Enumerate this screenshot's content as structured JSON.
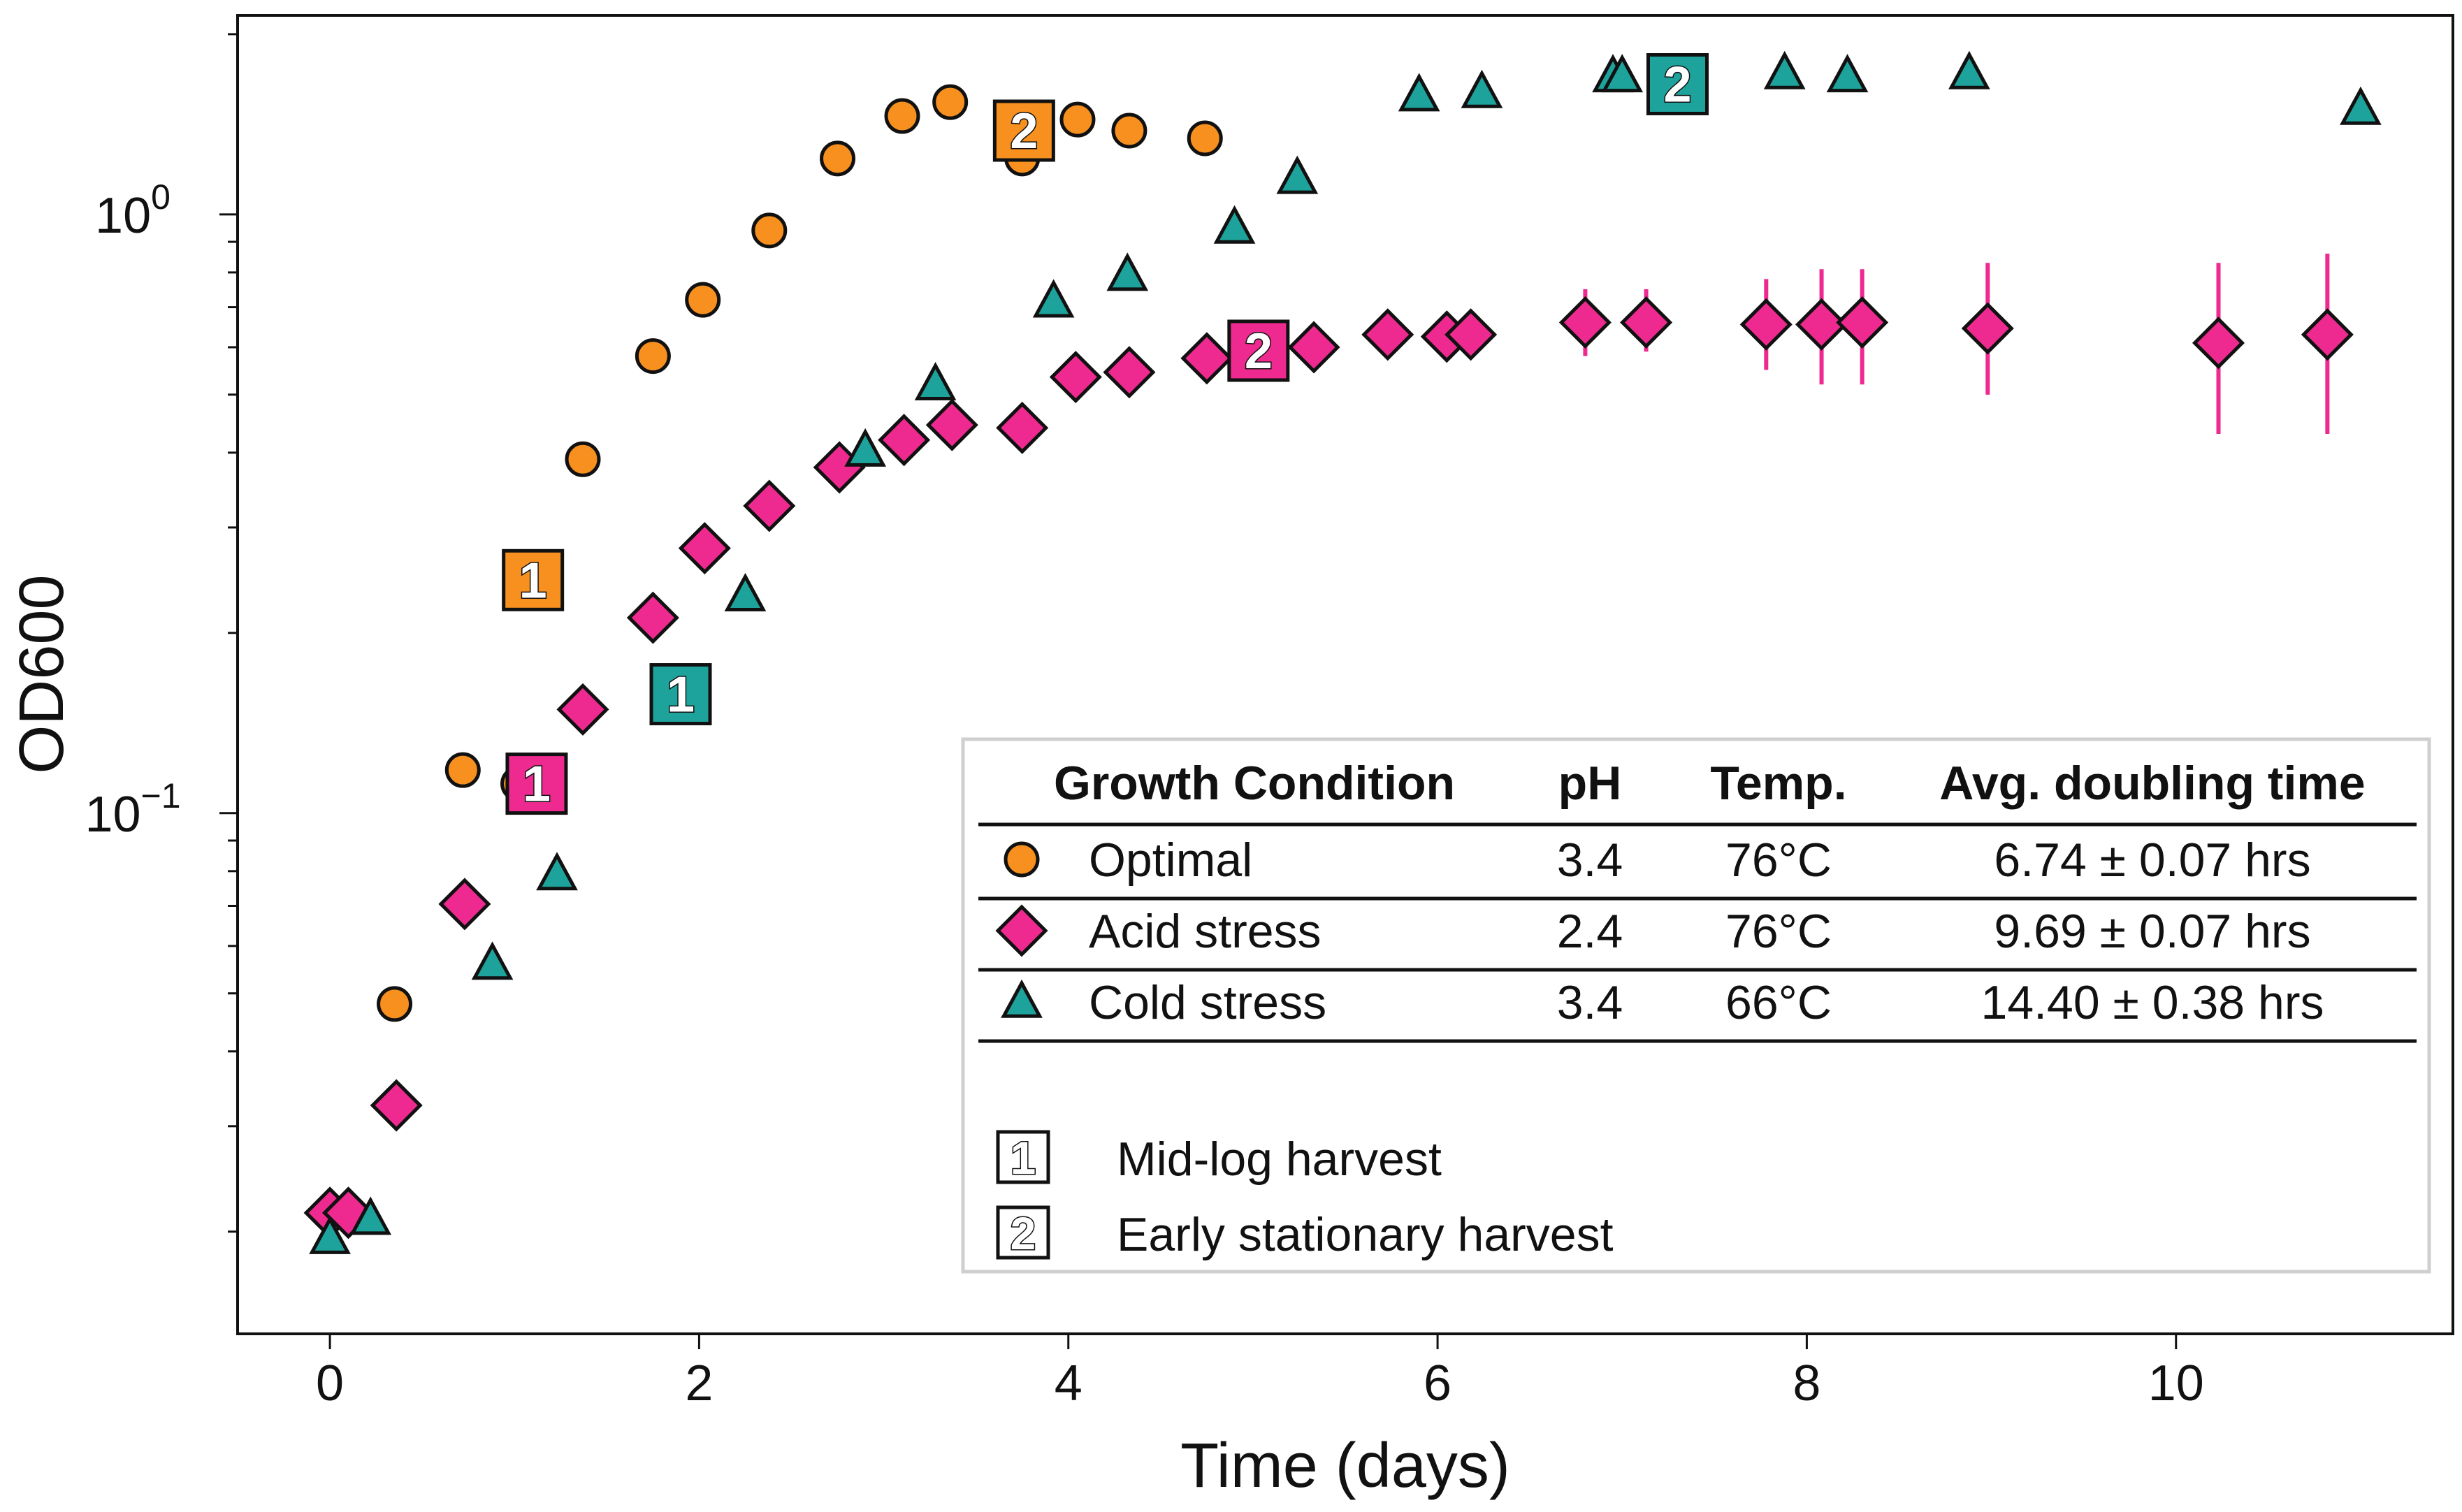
{
  "chart_data": {
    "type": "scatter",
    "title": "",
    "xlabel": "Time (days)",
    "ylabel": "OD600",
    "yscale": "log",
    "xlim": [
      -0.5,
      11.5
    ],
    "ylim": [
      0.0135,
      2.15
    ],
    "x_ticks": [
      0,
      2,
      4,
      6,
      8,
      10
    ],
    "x_tick_labels": [
      "0",
      "2",
      "4",
      "6",
      "8",
      "10"
    ],
    "y_ticks": [
      {
        "value": 0.1,
        "base": "10",
        "exp": "−1"
      },
      {
        "value": 1,
        "base": "10",
        "exp": "0"
      }
    ],
    "series": [
      {
        "name": "Optimal",
        "marker": "circle",
        "color": "#F7901E",
        "points": [
          {
            "x": 0.72,
            "y": 0.118
          },
          {
            "x": 1.02,
            "y": 0.112
          },
          {
            "x": 0.35,
            "y": 0.048
          },
          {
            "x": 1.37,
            "y": 0.39
          },
          {
            "x": 1.75,
            "y": 0.58
          },
          {
            "x": 2.02,
            "y": 0.72
          },
          {
            "x": 2.38,
            "y": 0.94
          },
          {
            "x": 2.75,
            "y": 1.24
          },
          {
            "x": 3.1,
            "y": 1.46
          },
          {
            "x": 3.36,
            "y": 1.54
          },
          {
            "x": 3.75,
            "y": 1.24
          },
          {
            "x": 4.05,
            "y": 1.44
          },
          {
            "x": 4.33,
            "y": 1.38
          },
          {
            "x": 4.74,
            "y": 1.34
          }
        ],
        "harvests": [
          {
            "label": "1",
            "x": 1.1,
            "y": 0.245
          },
          {
            "label": "2",
            "x": 3.76,
            "y": 1.38
          }
        ]
      },
      {
        "name": "Acid stress",
        "marker": "diamond",
        "color": "#EE2A90",
        "points": [
          {
            "x": 0.0,
            "y": 0.0215
          },
          {
            "x": 0.1,
            "y": 0.0215
          },
          {
            "x": 0.36,
            "y": 0.0325
          },
          {
            "x": 0.73,
            "y": 0.0705
          },
          {
            "x": 1.37,
            "y": 0.149
          },
          {
            "x": 1.75,
            "y": 0.212
          },
          {
            "x": 2.03,
            "y": 0.277
          },
          {
            "x": 2.38,
            "y": 0.326
          },
          {
            "x": 2.76,
            "y": 0.378
          },
          {
            "x": 3.11,
            "y": 0.42
          },
          {
            "x": 3.37,
            "y": 0.445
          },
          {
            "x": 3.75,
            "y": 0.44
          },
          {
            "x": 4.04,
            "y": 0.535
          },
          {
            "x": 4.33,
            "y": 0.545
          },
          {
            "x": 4.75,
            "y": 0.575
          },
          {
            "x": 5.33,
            "y": 0.6
          },
          {
            "x": 5.73,
            "y": 0.63
          },
          {
            "x": 6.05,
            "y": 0.625
          },
          {
            "x": 6.18,
            "y": 0.63
          },
          {
            "x": 6.8,
            "y": 0.66,
            "err": [
              0.58,
              0.75
            ]
          },
          {
            "x": 7.13,
            "y": 0.66,
            "err": [
              0.59,
              0.75
            ]
          },
          {
            "x": 7.78,
            "y": 0.655,
            "err": [
              0.55,
              0.78
            ]
          },
          {
            "x": 8.08,
            "y": 0.655,
            "err": [
              0.52,
              0.81
            ]
          },
          {
            "x": 8.3,
            "y": 0.66,
            "err": [
              0.52,
              0.81
            ]
          },
          {
            "x": 8.98,
            "y": 0.645,
            "err": [
              0.5,
              0.83
            ]
          },
          {
            "x": 10.23,
            "y": 0.61,
            "err": [
              0.43,
              0.83
            ]
          },
          {
            "x": 10.82,
            "y": 0.63,
            "err": [
              0.43,
              0.86
            ]
          }
        ],
        "harvests": [
          {
            "label": "1",
            "x": 1.12,
            "y": 0.112
          },
          {
            "label": "2",
            "x": 5.03,
            "y": 0.592
          }
        ]
      },
      {
        "name": "Cold stress",
        "marker": "triangle",
        "color": "#1EA39C",
        "points": [
          {
            "x": 0.0,
            "y": 0.0195
          },
          {
            "x": 0.22,
            "y": 0.021
          },
          {
            "x": 0.88,
            "y": 0.056
          },
          {
            "x": 1.23,
            "y": 0.079
          },
          {
            "x": 2.25,
            "y": 0.231
          },
          {
            "x": 2.9,
            "y": 0.403
          },
          {
            "x": 3.28,
            "y": 0.52
          },
          {
            "x": 3.92,
            "y": 0.715
          },
          {
            "x": 4.32,
            "y": 0.792
          },
          {
            "x": 4.9,
            "y": 0.95
          },
          {
            "x": 5.24,
            "y": 1.15
          },
          {
            "x": 5.9,
            "y": 1.58
          },
          {
            "x": 6.24,
            "y": 1.6
          },
          {
            "x": 6.95,
            "y": 1.7
          },
          {
            "x": 7.0,
            "y": 1.7
          },
          {
            "x": 7.88,
            "y": 1.72
          },
          {
            "x": 8.22,
            "y": 1.7
          },
          {
            "x": 8.88,
            "y": 1.72
          },
          {
            "x": 11.0,
            "y": 1.5
          }
        ],
        "harvests": [
          {
            "label": "1",
            "x": 1.9,
            "y": 0.158
          },
          {
            "label": "2",
            "x": 7.3,
            "y": 1.65
          }
        ]
      }
    ],
    "legend": {
      "location": "lower-right",
      "headers": [
        "Growth Condition",
        "pH",
        "Temp.",
        "Avg. doubling time"
      ],
      "rows": [
        {
          "name": "Optimal",
          "marker": "circle",
          "color": "#F7901E",
          "ph": "3.4",
          "temp": "76°C",
          "doubling": "6.74 ± 0.07 hrs"
        },
        {
          "name": "Acid stress",
          "marker": "diamond",
          "color": "#EE2A90",
          "ph": "2.4",
          "temp": "76°C",
          "doubling": "9.69 ± 0.07 hrs"
        },
        {
          "name": "Cold stress",
          "marker": "triangle",
          "color": "#1EA39C",
          "ph": "3.4",
          "temp": "66°C",
          "doubling": "14.40 ± 0.38 hrs"
        }
      ],
      "harvest_keys": [
        {
          "symbol": "1",
          "label": "Mid-log harvest"
        },
        {
          "symbol": "2",
          "label": "Early stationary harvest"
        }
      ]
    }
  }
}
